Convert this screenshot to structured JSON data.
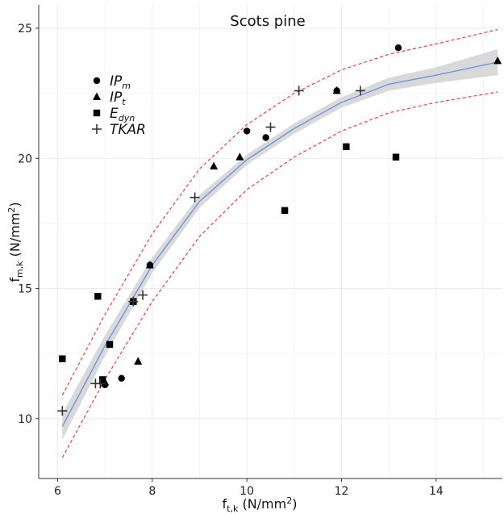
{
  "chart_data": {
    "type": "scatter",
    "title": "Scots pine",
    "xlabel": {
      "main": "f",
      "sub": "t,k",
      "unit_pre": " (N/mm",
      "unit_sup": "2",
      "unit_post": ")"
    },
    "ylabel": {
      "main": "f",
      "sub": "m,k",
      "unit_pre": " (N/mm",
      "unit_sup": "2",
      "unit_post": ")"
    },
    "xlim": [
      5.6,
      15.4
    ],
    "ylim": [
      7.7,
      25.9
    ],
    "x_ticks": [
      "6",
      "8",
      "10",
      "12",
      "14"
    ],
    "y_ticks": [
      "10",
      "15",
      "20",
      "25"
    ],
    "grid": true,
    "legend_position": "top-left",
    "legend": [
      {
        "marker": "circle",
        "main": "IP",
        "sub": "m"
      },
      {
        "marker": "triangle",
        "main": "IP",
        "sub": "t"
      },
      {
        "marker": "square",
        "main": "E",
        "sub": "dyn"
      },
      {
        "marker": "plus",
        "main": "TKAR",
        "sub": ""
      }
    ],
    "series": [
      {
        "name": "IPm",
        "marker": "circle",
        "points": [
          [
            7.0,
            11.3
          ],
          [
            7.35,
            11.55
          ],
          [
            7.95,
            15.9
          ],
          [
            10.0,
            21.05
          ],
          [
            10.4,
            20.8
          ],
          [
            11.9,
            22.6
          ],
          [
            13.2,
            24.25
          ]
        ]
      },
      {
        "name": "IPt",
        "marker": "triangle",
        "points": [
          [
            7.0,
            11.4
          ],
          [
            7.7,
            12.2
          ],
          [
            7.95,
            15.9
          ],
          [
            9.3,
            19.7
          ],
          [
            9.85,
            20.05
          ],
          [
            11.9,
            22.6
          ],
          [
            15.3,
            23.75
          ]
        ]
      },
      {
        "name": "Edyn",
        "marker": "square",
        "points": [
          [
            6.1,
            12.3
          ],
          [
            6.85,
            14.7
          ],
          [
            6.95,
            11.5
          ],
          [
            7.1,
            12.85
          ],
          [
            7.6,
            14.5
          ],
          [
            10.8,
            18.0
          ],
          [
            12.1,
            20.45
          ],
          [
            13.15,
            20.05
          ]
        ]
      },
      {
        "name": "TKAR",
        "marker": "plus",
        "points": [
          [
            6.1,
            10.3
          ],
          [
            6.8,
            11.35
          ],
          [
            6.9,
            11.35
          ],
          [
            7.6,
            14.5
          ],
          [
            7.8,
            14.75
          ],
          [
            8.9,
            18.5
          ],
          [
            10.5,
            21.2
          ],
          [
            11.1,
            22.6
          ],
          [
            12.4,
            22.6
          ]
        ]
      }
    ],
    "fit_line": {
      "color": "#6a8fe0",
      "x": [
        6.1,
        7.0,
        8.0,
        9.0,
        10.0,
        11.0,
        12.0,
        13.0,
        14.0,
        15.3
      ],
      "y": [
        9.7,
        12.8,
        15.9,
        18.35,
        19.95,
        21.15,
        22.15,
        22.85,
        23.2,
        23.7
      ]
    },
    "confidence_band": {
      "color": "#d9d9d9",
      "x": [
        6.1,
        7.0,
        8.0,
        9.0,
        10.0,
        11.0,
        12.0,
        13.0,
        14.0,
        15.3
      ],
      "lower": [
        9.2,
        12.4,
        15.6,
        18.1,
        19.75,
        20.95,
        21.95,
        22.6,
        22.9,
        23.2
      ],
      "upper": [
        10.2,
        13.2,
        16.2,
        18.6,
        20.15,
        21.35,
        22.35,
        23.1,
        23.5,
        24.2
      ]
    },
    "prediction_interval": {
      "color": "#ee3b3b",
      "x": [
        6.1,
        7.0,
        8.0,
        9.0,
        10.0,
        11.0,
        12.0,
        13.0,
        14.0,
        15.3
      ],
      "lower": [
        8.5,
        11.5,
        14.5,
        17.0,
        18.8,
        20.05,
        21.05,
        21.75,
        22.15,
        22.55
      ],
      "upper": [
        10.9,
        14.0,
        17.1,
        19.6,
        21.3,
        22.5,
        23.4,
        24.0,
        24.4,
        24.95
      ]
    }
  }
}
